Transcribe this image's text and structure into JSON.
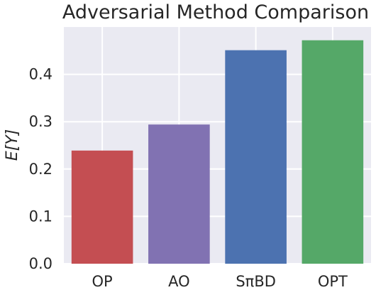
{
  "chart_data": {
    "type": "bar",
    "title": "Adversarial Method Comparison",
    "xlabel": "",
    "ylabel": "E[Y]",
    "categories": [
      "OP",
      "AO",
      "SπBD",
      "OPT"
    ],
    "values": [
      0.239,
      0.294,
      0.451,
      0.472
    ],
    "colors": [
      "#c44e52",
      "#8172b2",
      "#4c72b0",
      "#55a868"
    ],
    "ylim": [
      0,
      0.5
    ],
    "yticks": [
      0.0,
      0.1,
      0.2,
      0.3,
      0.4
    ],
    "ytick_labels": [
      "0.0",
      "0.1",
      "0.2",
      "0.3",
      "0.4"
    ],
    "grid": true,
    "background": "#eaeaf2"
  }
}
